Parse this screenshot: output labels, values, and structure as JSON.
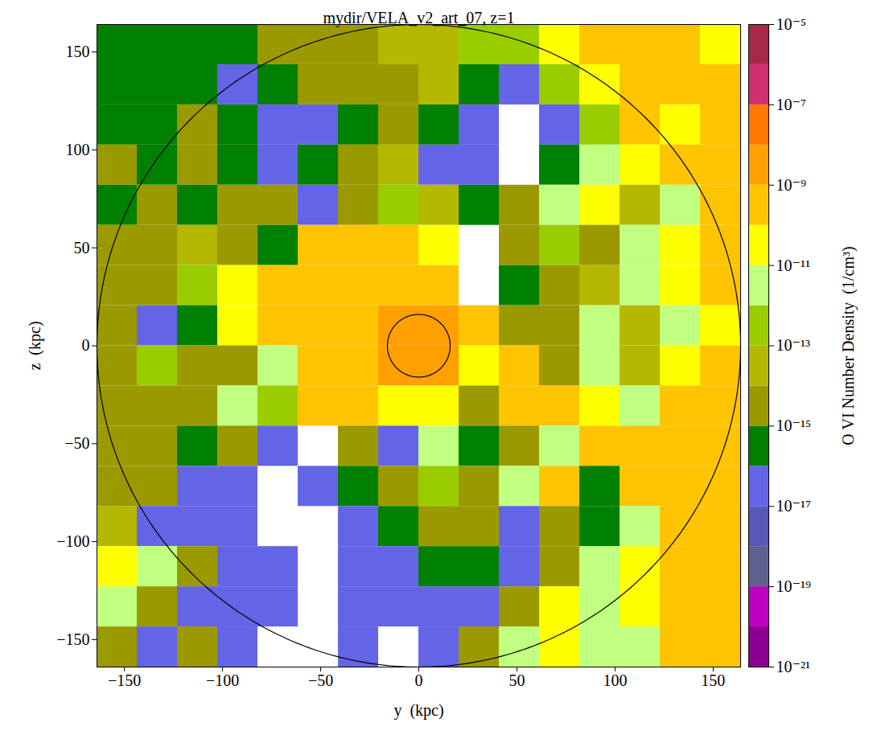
{
  "chart_data": {
    "type": "heatmap",
    "title": "mydir/VELA_v2_art_07, z=1",
    "xlabel": "y  (kpc)",
    "ylabel": "z  (kpc)",
    "xlim": [
      -164,
      164
    ],
    "ylim": [
      -164,
      164
    ],
    "xticks": [
      -150,
      -100,
      -50,
      0,
      50,
      100,
      150
    ],
    "yticks": [
      -150,
      -100,
      -50,
      0,
      50,
      100,
      150
    ],
    "circles": [
      {
        "center": [
          0,
          0
        ],
        "radius": 164
      },
      {
        "center": [
          0,
          0
        ],
        "radius": 16
      }
    ],
    "cells": {
      "y_edges": [
        -164,
        -143.5,
        -123,
        -102.5,
        -82,
        -61.5,
        -41,
        -20.5,
        0,
        20.5,
        41,
        61.5,
        82,
        102.5,
        123,
        143.5,
        164
      ],
      "z_edges": [
        164,
        143.5,
        123,
        102.5,
        82,
        61.5,
        41,
        20.5,
        0,
        -20.5,
        -41,
        -61.5,
        -82,
        -102.5,
        -123,
        -143.5,
        -164
      ],
      "values": [
        [
          3e-16,
          3e-16,
          3e-16,
          3e-16,
          3e-15,
          3e-15,
          3e-15,
          3e-14,
          3e-14,
          3e-13,
          3e-13,
          3e-11,
          3e-10,
          3e-10,
          3e-10,
          3e-11
        ],
        [
          3e-16,
          3e-16,
          3e-16,
          3e-17,
          3e-16,
          3e-15,
          3e-15,
          3e-15,
          3e-14,
          3e-16,
          3e-17,
          3e-13,
          3e-11,
          3e-10,
          3e-10,
          3e-10
        ],
        [
          3e-16,
          3e-16,
          3e-15,
          3e-16,
          3e-17,
          3e-17,
          3e-16,
          3e-15,
          3e-16,
          3e-17,
          null,
          3e-17,
          3e-13,
          3e-10,
          3e-11,
          3e-10
        ],
        [
          3e-15,
          3e-16,
          3e-15,
          3e-16,
          3e-17,
          3e-16,
          3e-15,
          3e-14,
          3e-17,
          3e-17,
          null,
          3e-16,
          3e-12,
          3e-11,
          3e-10,
          3e-10
        ],
        [
          3e-16,
          3e-15,
          3e-16,
          3e-15,
          3e-15,
          3e-17,
          3e-15,
          3e-13,
          3e-14,
          3e-16,
          3e-15,
          3e-12,
          3e-11,
          3e-14,
          3e-12,
          3e-10
        ],
        [
          3e-15,
          3e-15,
          3e-14,
          3e-15,
          3e-16,
          3e-10,
          3e-10,
          3e-10,
          3e-11,
          null,
          3e-15,
          3e-13,
          3e-15,
          3e-12,
          3e-11,
          3e-10
        ],
        [
          3e-15,
          3e-15,
          3e-13,
          3e-11,
          3e-10,
          3e-10,
          3e-10,
          3e-10,
          3e-10,
          null,
          3e-16,
          3e-15,
          3e-14,
          3e-12,
          3e-11,
          3e-10
        ],
        [
          3e-15,
          3e-17,
          3e-16,
          3e-11,
          3e-10,
          3e-10,
          3e-10,
          3e-09,
          3e-09,
          3e-10,
          3e-15,
          3e-15,
          3e-12,
          3e-14,
          3e-12,
          3e-11
        ],
        [
          3e-15,
          3e-13,
          3e-15,
          3e-15,
          3e-12,
          3e-10,
          3e-10,
          3e-09,
          3e-09,
          3e-11,
          3e-10,
          3e-15,
          3e-12,
          3e-14,
          3e-11,
          3e-10
        ],
        [
          3e-15,
          3e-15,
          3e-15,
          3e-12,
          3e-13,
          3e-10,
          3e-10,
          3e-11,
          3e-11,
          3e-15,
          3e-10,
          3e-10,
          3e-11,
          3e-12,
          3e-10,
          3e-10
        ],
        [
          3e-15,
          3e-15,
          3e-16,
          3e-15,
          3e-17,
          null,
          3e-15,
          3e-17,
          3e-12,
          3e-16,
          3e-15,
          3e-12,
          3e-10,
          3e-10,
          3e-10,
          3e-10
        ],
        [
          3e-15,
          3e-15,
          3e-17,
          3e-17,
          null,
          3e-17,
          3e-16,
          3e-15,
          3e-13,
          3e-15,
          3e-12,
          3e-10,
          3e-16,
          3e-10,
          3e-10,
          3e-10
        ],
        [
          3e-14,
          3e-17,
          3e-17,
          3e-17,
          null,
          null,
          3e-17,
          3e-16,
          3e-15,
          3e-15,
          3e-17,
          3e-15,
          3e-16,
          3e-12,
          3e-10,
          3e-10
        ],
        [
          3e-11,
          3e-12,
          3e-15,
          3e-17,
          3e-17,
          null,
          3e-17,
          3e-17,
          3e-16,
          3e-16,
          3e-17,
          3e-15,
          3e-12,
          3e-11,
          3e-10,
          3e-10
        ],
        [
          3e-12,
          3e-15,
          3e-17,
          3e-17,
          3e-17,
          null,
          3e-17,
          3e-17,
          3e-17,
          3e-17,
          3e-15,
          3e-11,
          3e-12,
          3e-11,
          3e-10,
          3e-10
        ],
        [
          3e-15,
          3e-17,
          3e-15,
          3e-17,
          null,
          null,
          3e-17,
          null,
          3e-17,
          3e-15,
          3e-12,
          3e-11,
          3e-12,
          3e-12,
          3e-10,
          3e-10
        ]
      ]
    },
    "colorbar": {
      "label": "O VI Number Density  (1/cm³)",
      "lim": [
        1e-21,
        1e-05
      ],
      "log": true,
      "ticks": [
        {
          "value": 1e-05,
          "label": "10⁻⁵"
        },
        {
          "value": 1e-07,
          "label": "10⁻⁷"
        },
        {
          "value": 1e-09,
          "label": "10⁻⁹"
        },
        {
          "value": 1e-11,
          "label": "10⁻¹¹"
        },
        {
          "value": 1e-13,
          "label": "10⁻¹³"
        },
        {
          "value": 1e-15,
          "label": "10⁻¹⁵"
        },
        {
          "value": 1e-17,
          "label": "10⁻¹⁷"
        },
        {
          "value": 1e-19,
          "label": "10⁻¹⁹"
        },
        {
          "value": 1e-21,
          "label": "10⁻²¹"
        }
      ],
      "colors": [
        "#8b0090",
        "#c000c0",
        "#606090",
        "#5858b8",
        "#6464e6",
        "#008000",
        "#9a9a00",
        "#b4b800",
        "#9acd00",
        "#c0ff80",
        "#ffff00",
        "#ffc400",
        "#ffa000",
        "#ff7800",
        "#d03070",
        "#a82848"
      ]
    }
  }
}
